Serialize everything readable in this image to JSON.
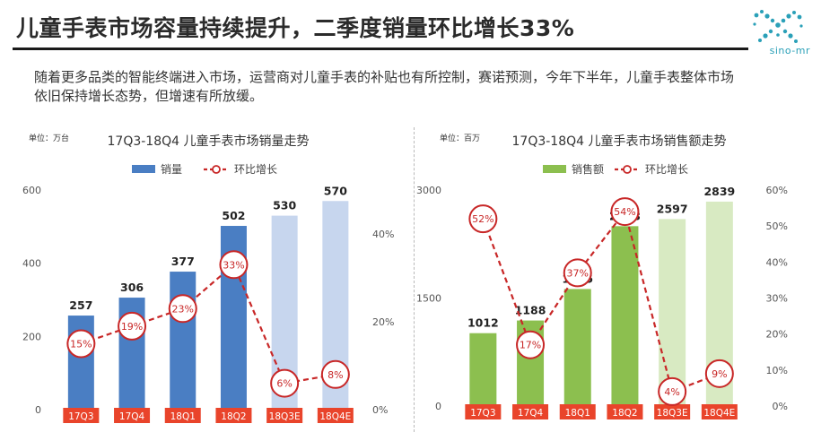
{
  "header": {
    "title": "儿童手表市场容量持续提升，二季度销量环比增长33%",
    "description": "随着更多品类的智能终端进入市场，运营商对儿童手表的补贴也有所控制，赛诺预测，今年下半年，儿童手表整体市场依旧保持增长态势，但增速有所放缓。",
    "logo_text": "sino-mr"
  },
  "colors": {
    "left_bar": "#4a7ec3",
    "left_bar_forecast": "#c7d6ee",
    "right_bar": "#8cbf4f",
    "right_bar_forecast": "#d8eac2",
    "growth_line": "#c82727",
    "category_label_bg": "#e9442b"
  },
  "chart_data": [
    {
      "type": "bar",
      "title": "17Q3-18Q4 儿童手表市场销量走势",
      "unit": "单位：万台",
      "categories": [
        "17Q3",
        "17Q4",
        "18Q1",
        "18Q2",
        "18Q3E",
        "18Q4E"
      ],
      "series": [
        {
          "name": "销量",
          "type": "bar",
          "axis": "left",
          "values": [
            257,
            306,
            377,
            502,
            530,
            570
          ],
          "forecast_from_index": 4
        },
        {
          "name": "环比增长",
          "type": "line",
          "axis": "right",
          "values": [
            15,
            19,
            23,
            33,
            6,
            8
          ],
          "labels": [
            "15%",
            "19%",
            "23%",
            "33%",
            "6%",
            "8%"
          ]
        }
      ],
      "ylim_left": [
        0,
        600
      ],
      "yticks_left": [
        0,
        200,
        400,
        600
      ],
      "ylim_right": [
        0,
        50
      ],
      "yticks_right": [
        "0%",
        "20%",
        "40%"
      ],
      "yticks_right_values": [
        0,
        20,
        40
      ],
      "legend": "top-center",
      "grid": false
    },
    {
      "type": "bar",
      "title": "17Q3-18Q4 儿童手表市场销售额走势",
      "unit": "单位：百万",
      "categories": [
        "17Q3",
        "17Q4",
        "18Q1",
        "18Q2",
        "18Q3E",
        "18Q4E"
      ],
      "series": [
        {
          "name": "销售额",
          "type": "bar",
          "axis": "left",
          "values": [
            1012,
            1188,
            1625,
            2498,
            2597,
            2839
          ],
          "forecast_from_index": 4
        },
        {
          "name": "环比增长",
          "type": "line",
          "axis": "right",
          "values": [
            52,
            17,
            37,
            54,
            4,
            9
          ],
          "labels": [
            "52%",
            "17%",
            "37%",
            "54%",
            "4%",
            "9%"
          ]
        }
      ],
      "ylim_left": [
        0,
        3000
      ],
      "yticks_left": [
        0,
        1500,
        3000
      ],
      "ylim_right": [
        0,
        60
      ],
      "yticks_right": [
        "0%",
        "10%",
        "20%",
        "30%",
        "40%",
        "50%",
        "60%"
      ],
      "yticks_right_values": [
        0,
        10,
        20,
        30,
        40,
        50,
        60
      ],
      "legend": "top-center",
      "grid": false
    }
  ]
}
